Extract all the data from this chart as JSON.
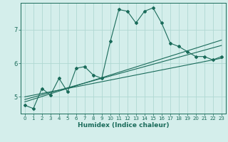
{
  "xlabel": "Humidex (Indice chaleur)",
  "background_color": "#d4eeeb",
  "grid_color": "#afd8d3",
  "line_color": "#1a6b5a",
  "x_values": [
    0,
    1,
    2,
    3,
    4,
    5,
    6,
    7,
    8,
    9,
    10,
    11,
    12,
    13,
    14,
    15,
    16,
    17,
    18,
    19,
    20,
    21,
    22,
    23
  ],
  "y_main": [
    4.75,
    4.65,
    5.25,
    5.05,
    5.55,
    5.15,
    5.85,
    5.9,
    5.65,
    5.55,
    6.65,
    7.6,
    7.55,
    7.2,
    7.55,
    7.65,
    7.2,
    6.6,
    6.5,
    6.35,
    6.2,
    6.2,
    6.1,
    6.2
  ],
  "y_trend1": [
    4.85,
    4.93,
    5.01,
    5.09,
    5.17,
    5.25,
    5.33,
    5.41,
    5.49,
    5.57,
    5.65,
    5.73,
    5.81,
    5.89,
    5.97,
    6.05,
    6.13,
    6.21,
    6.29,
    6.37,
    6.45,
    6.53,
    6.61,
    6.69
  ],
  "y_trend2": [
    5.0,
    5.05,
    5.1,
    5.15,
    5.2,
    5.25,
    5.3,
    5.35,
    5.4,
    5.45,
    5.5,
    5.55,
    5.6,
    5.65,
    5.7,
    5.75,
    5.8,
    5.85,
    5.9,
    5.95,
    6.0,
    6.05,
    6.1,
    6.15
  ],
  "y_trend3": [
    4.92,
    4.99,
    5.06,
    5.13,
    5.2,
    5.27,
    5.34,
    5.41,
    5.48,
    5.55,
    5.62,
    5.69,
    5.76,
    5.83,
    5.9,
    5.97,
    6.04,
    6.11,
    6.18,
    6.25,
    6.32,
    6.39,
    6.46,
    6.53
  ],
  "ylim": [
    4.5,
    7.8
  ],
  "yticks": [
    5,
    6,
    7
  ],
  "xlim": [
    -0.5,
    23.5
  ],
  "xtick_fontsize": 5,
  "ytick_fontsize": 6,
  "xlabel_fontsize": 6.5
}
